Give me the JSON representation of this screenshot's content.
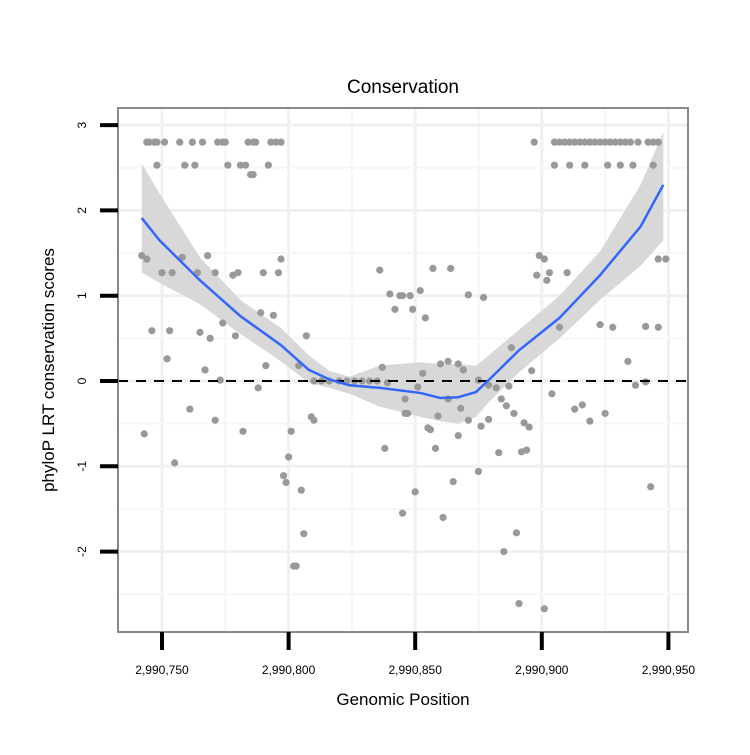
{
  "chart_data": {
    "type": "scatter",
    "title": "Conservation",
    "xlabel": "Genomic Position",
    "ylabel": "phyloP LRT conservation scores",
    "xlim": [
      2990733,
      2990952
    ],
    "ylim": [
      -2.92,
      3.2
    ],
    "x_ticks": [
      2990750,
      2990800,
      2990850,
      2990900,
      2990950
    ],
    "x_tick_labels": [
      "2,990,750",
      "2,990,800",
      "2,990,850",
      "2,990,900",
      "2,990,950"
    ],
    "y_ticks": [
      -2,
      -1,
      0,
      1,
      2,
      3
    ],
    "y_tick_labels": [
      "-2",
      "-1",
      "0",
      "1",
      "2",
      "3"
    ],
    "grid": true,
    "reference_line": {
      "y": 0,
      "style": "dashed"
    },
    "colors": {
      "points": "#999999",
      "smooth": "#3366FF",
      "ribbon": "#D6D6D6",
      "panel_border": "#8A8A8A",
      "grid": "#F3F3F3"
    },
    "points": [
      [
        2990744,
        2.8
      ],
      [
        2990745,
        2.8
      ],
      [
        2990747,
        2.8
      ],
      [
        2990748,
        2.8
      ],
      [
        2990751,
        2.8
      ],
      [
        2990757,
        2.8
      ],
      [
        2990762,
        2.8
      ],
      [
        2990766,
        2.8
      ],
      [
        2990772,
        2.8
      ],
      [
        2990774,
        2.8
      ],
      [
        2990775,
        2.8
      ],
      [
        2990784,
        2.8
      ],
      [
        2990786,
        2.8
      ],
      [
        2990787,
        2.8
      ],
      [
        2990793,
        2.8
      ],
      [
        2990795,
        2.8
      ],
      [
        2990797,
        2.8
      ],
      [
        2990897,
        2.8
      ],
      [
        2990905,
        2.8
      ],
      [
        2990907,
        2.8
      ],
      [
        2990909,
        2.8
      ],
      [
        2990911,
        2.8
      ],
      [
        2990913,
        2.8
      ],
      [
        2990915,
        2.8
      ],
      [
        2990917,
        2.8
      ],
      [
        2990919,
        2.8
      ],
      [
        2990921,
        2.8
      ],
      [
        2990923,
        2.8
      ],
      [
        2990925,
        2.8
      ],
      [
        2990927,
        2.8
      ],
      [
        2990929,
        2.8
      ],
      [
        2990931,
        2.8
      ],
      [
        2990933,
        2.8
      ],
      [
        2990935,
        2.8
      ],
      [
        2990938,
        2.8
      ],
      [
        2990942,
        2.8
      ],
      [
        2990944,
        2.8
      ],
      [
        2990946,
        2.8
      ],
      [
        2990748,
        2.53
      ],
      [
        2990759,
        2.53
      ],
      [
        2990763,
        2.53
      ],
      [
        2990776,
        2.53
      ],
      [
        2990781,
        2.53
      ],
      [
        2990783,
        2.53
      ],
      [
        2990792,
        2.53
      ],
      [
        2990905,
        2.53
      ],
      [
        2990911,
        2.53
      ],
      [
        2990917,
        2.53
      ],
      [
        2990926,
        2.53
      ],
      [
        2990931,
        2.53
      ],
      [
        2990936,
        2.53
      ],
      [
        2990944,
        2.53
      ],
      [
        2990785,
        2.42
      ],
      [
        2990786,
        2.42
      ],
      [
        2990742,
        1.47
      ],
      [
        2990744,
        1.43
      ],
      [
        2990758,
        1.45
      ],
      [
        2990768,
        1.47
      ],
      [
        2990797,
        1.43
      ],
      [
        2990750,
        1.27
      ],
      [
        2990754,
        1.27
      ],
      [
        2990764,
        1.27
      ],
      [
        2990771,
        1.27
      ],
      [
        2990778,
        1.24
      ],
      [
        2990780,
        1.27
      ],
      [
        2990790,
        1.27
      ],
      [
        2990796,
        1.27
      ],
      [
        2990836,
        1.3
      ],
      [
        2990840,
        1.02
      ],
      [
        2990844,
        1.0
      ],
      [
        2990842,
        0.84
      ],
      [
        2990789,
        0.8
      ],
      [
        2990794,
        0.77
      ],
      [
        2990746,
        0.59
      ],
      [
        2990753,
        0.59
      ],
      [
        2990765,
        0.57
      ],
      [
        2990769,
        0.5
      ],
      [
        2990774,
        0.68
      ],
      [
        2990779,
        0.53
      ],
      [
        2990807,
        0.53
      ],
      [
        2990752,
        0.26
      ],
      [
        2990767,
        0.13
      ],
      [
        2990791,
        0.18
      ],
      [
        2990804,
        0.18
      ],
      [
        2990837,
        0.16
      ],
      [
        2990899,
        1.47
      ],
      [
        2990901,
        1.43
      ],
      [
        2990857,
        1.32
      ],
      [
        2990864,
        1.32
      ],
      [
        2990898,
        1.24
      ],
      [
        2990903,
        1.27
      ],
      [
        2990902,
        1.18
      ],
      [
        2990910,
        1.27
      ],
      [
        2990946,
        1.43
      ],
      [
        2990949,
        1.43
      ],
      [
        2990845,
        1.0
      ],
      [
        2990848,
        1.0
      ],
      [
        2990852,
        1.06
      ],
      [
        2990871,
        1.01
      ],
      [
        2990877,
        0.98
      ],
      [
        2990849,
        0.84
      ],
      [
        2990854,
        0.74
      ],
      [
        2990907,
        0.63
      ],
      [
        2990923,
        0.66
      ],
      [
        2990928,
        0.63
      ],
      [
        2990941,
        0.64
      ],
      [
        2990946,
        0.63
      ],
      [
        2990888,
        0.39
      ],
      [
        2990934,
        0.23
      ],
      [
        2990860,
        0.2
      ],
      [
        2990863,
        0.23
      ],
      [
        2990867,
        0.2
      ],
      [
        2990869,
        0.13
      ],
      [
        2990853,
        0.09
      ],
      [
        2990896,
        0.12
      ],
      [
        2990773,
        0.01
      ],
      [
        2990788,
        -0.08
      ],
      [
        2990761,
        -0.33
      ],
      [
        2990771,
        -0.46
      ],
      [
        2990743,
        -0.62
      ],
      [
        2990782,
        -0.59
      ],
      [
        2990801,
        -0.59
      ],
      [
        2990809,
        -0.42
      ],
      [
        2990810,
        -0.46
      ],
      [
        2990755,
        -0.96
      ],
      [
        2990800,
        -0.89
      ],
      [
        2990798,
        -1.11
      ],
      [
        2990799,
        -1.19
      ],
      [
        2990805,
        -1.28
      ],
      [
        2990806,
        -1.79
      ],
      [
        2990802,
        -2.17
      ],
      [
        2990803,
        -2.17
      ],
      [
        2990838,
        -0.79
      ],
      [
        2990845,
        -1.55
      ],
      [
        2990839,
        -0.02
      ],
      [
        2990846,
        -0.21
      ],
      [
        2990846,
        -0.38
      ],
      [
        2990847,
        -0.38
      ],
      [
        2990810,
        0
      ],
      [
        2990813,
        0
      ],
      [
        2990816,
        0
      ],
      [
        2990820,
        0
      ],
      [
        2990823,
        0
      ],
      [
        2990826,
        0
      ],
      [
        2990829,
        0
      ],
      [
        2990832,
        0
      ],
      [
        2990835,
        0
      ],
      [
        2990851,
        -0.07
      ],
      [
        2990863,
        -0.21
      ],
      [
        2990859,
        -0.41
      ],
      [
        2990868,
        -0.32
      ],
      [
        2990871,
        -0.46
      ],
      [
        2990855,
        -0.55
      ],
      [
        2990856,
        -0.57
      ],
      [
        2990867,
        -0.64
      ],
      [
        2990858,
        -0.79
      ],
      [
        2990875,
        0.01
      ],
      [
        2990879,
        -0.05
      ],
      [
        2990882,
        -0.08
      ],
      [
        2990887,
        -0.06
      ],
      [
        2990884,
        -0.21
      ],
      [
        2990886,
        -0.29
      ],
      [
        2990889,
        -0.38
      ],
      [
        2990879,
        -0.45
      ],
      [
        2990876,
        -0.53
      ],
      [
        2990893,
        -0.49
      ],
      [
        2990895,
        -0.54
      ],
      [
        2990904,
        -0.15
      ],
      [
        2990913,
        -0.33
      ],
      [
        2990916,
        -0.28
      ],
      [
        2990919,
        -0.47
      ],
      [
        2990925,
        -0.38
      ],
      [
        2990937,
        -0.05
      ],
      [
        2990941,
        -0.01
      ],
      [
        2990883,
        -0.84
      ],
      [
        2990892,
        -0.83
      ],
      [
        2990894,
        -0.81
      ],
      [
        2990875,
        -1.06
      ],
      [
        2990865,
        -1.18
      ],
      [
        2990850,
        -1.3
      ],
      [
        2990861,
        -1.6
      ],
      [
        2990890,
        -1.78
      ],
      [
        2990885,
        -2.0
      ],
      [
        2990891,
        -2.61
      ],
      [
        2990901,
        -2.67
      ],
      [
        2990943,
        -1.24
      ]
    ],
    "smooth": {
      "x": [
        2990742,
        2990749,
        2990765,
        2990781,
        2990797,
        2990808,
        2990816,
        2990824,
        2990836,
        2990852,
        2990860,
        2990867,
        2990874,
        2990879,
        2990891,
        2990907,
        2990923,
        2990939,
        2990948
      ],
      "y": [
        1.91,
        1.65,
        1.18,
        0.76,
        0.42,
        0.13,
        0.02,
        -0.05,
        -0.08,
        -0.14,
        -0.2,
        -0.19,
        -0.13,
        0.01,
        0.36,
        0.74,
        1.24,
        1.81,
        2.3
      ],
      "upper": [
        2.55,
        2.2,
        1.45,
        0.95,
        0.62,
        0.3,
        0.12,
        0.05,
        0.18,
        0.22,
        0.2,
        0.2,
        0.18,
        0.3,
        0.6,
        1.0,
        1.52,
        2.3,
        2.92
      ],
      "lower": [
        1.27,
        1.15,
        0.9,
        0.55,
        0.23,
        -0.02,
        -0.08,
        -0.15,
        -0.3,
        -0.42,
        -0.47,
        -0.5,
        -0.42,
        -0.25,
        0.1,
        0.5,
        0.95,
        1.35,
        1.65
      ]
    }
  }
}
